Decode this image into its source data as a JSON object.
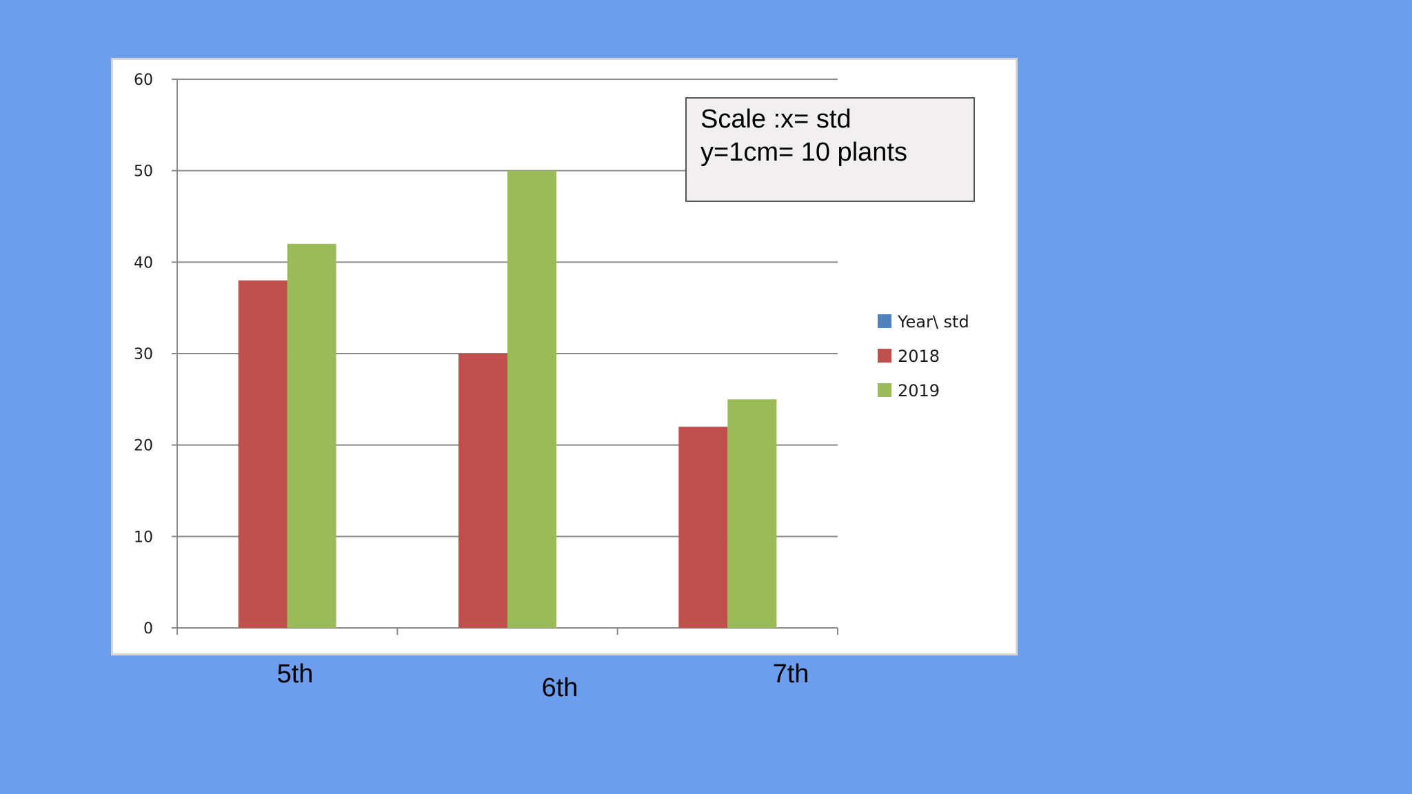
{
  "colors": {
    "background": "#6d9ded",
    "plot_background": "#ffffff",
    "gridline": "#8a8a8a",
    "note_background": "#f1eff0"
  },
  "note": {
    "line1": "Scale :x= std",
    "line2": "y=1cm= 10 plants"
  },
  "chart_data": {
    "type": "bar",
    "categories": [
      "5th",
      "6th",
      "7th"
    ],
    "series": [
      {
        "name": "Year\\ std",
        "color": "#4f81bd",
        "values": [
          0,
          0,
          0
        ]
      },
      {
        "name": "2018",
        "color": "#c0504d",
        "values": [
          38,
          30,
          22
        ]
      },
      {
        "name": "2019",
        "color": "#9bbb59",
        "values": [
          42,
          50,
          25
        ]
      }
    ],
    "ylim": [
      0,
      60
    ],
    "yticks": [
      0,
      10,
      20,
      30,
      40,
      50,
      60
    ],
    "grid": true,
    "legend_position": "right"
  }
}
